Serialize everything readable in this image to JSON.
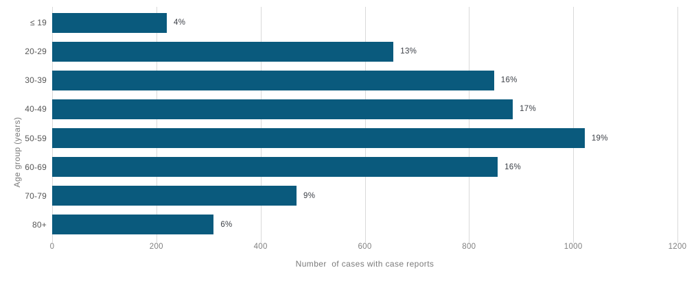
{
  "chart_data": {
    "type": "bar",
    "orientation": "horizontal",
    "title": "",
    "xlabel": "Number  of cases with case reports",
    "ylabel": "Age group (years)",
    "categories": [
      "≤ 19",
      "20-29",
      "30-39",
      "40-49",
      "50-59",
      "60-69",
      "70-79",
      "80+"
    ],
    "values": [
      220,
      655,
      848,
      884,
      1022,
      855,
      469,
      310
    ],
    "bar_labels": [
      "4%",
      "13%",
      "16%",
      "17%",
      "19%",
      "16%",
      "9%",
      "6%"
    ],
    "xlim": [
      0,
      1200
    ],
    "xticks": [
      0,
      200,
      400,
      600,
      800,
      1000,
      1200
    ],
    "grid": true,
    "legend": false,
    "colors": {
      "bar": "#0a5a7d",
      "gridline": "#d9d9d9",
      "tick_label": "#7f7f7f",
      "axis_title": "#7a7a7a",
      "category_label": "#555555",
      "bar_label": "#3b3f46",
      "background": "#ffffff"
    }
  }
}
